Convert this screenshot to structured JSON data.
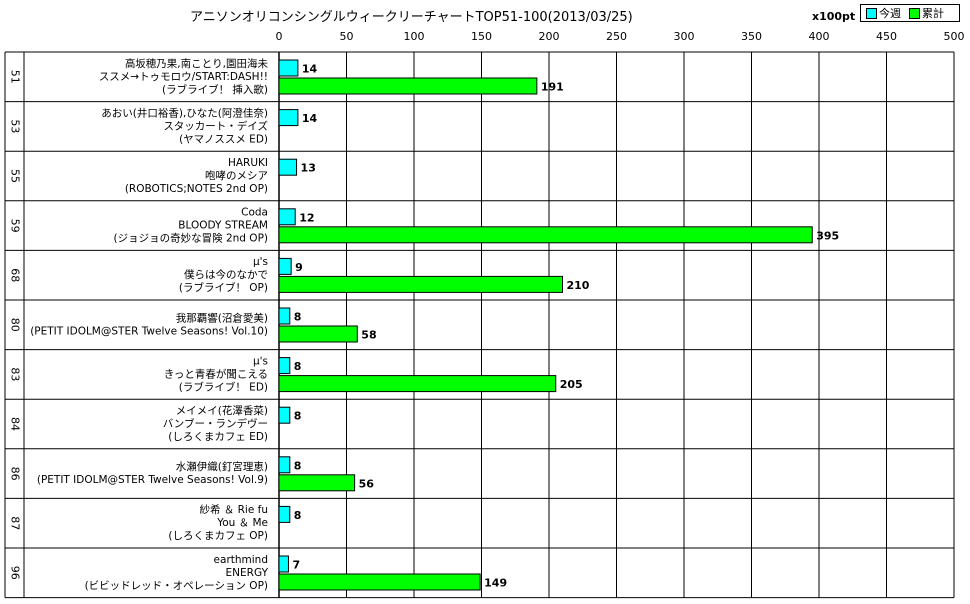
{
  "chart_data": {
    "type": "bar",
    "orientation": "horizontal",
    "title": "アニソンオリコンシングルウィークリーチャートTOP51-100(2013/03/25)",
    "unit_label": "x100pt",
    "xlim": [
      0,
      500
    ],
    "x_ticks": [
      0,
      50,
      100,
      150,
      200,
      250,
      300,
      350,
      400,
      450,
      500
    ],
    "grid": true,
    "legend_position": "top-right",
    "series": [
      {
        "name": "今週",
        "color": "#00ffff"
      },
      {
        "name": "累計",
        "color": "#00ff00"
      }
    ],
    "rows": [
      {
        "rank": "51",
        "lines": [
          "高坂穂乃果,南ことり,園田海未",
          "ススメ→トゥモロウ/START:DASH!!",
          "(ラブライブ！ 挿入歌)"
        ],
        "week": 14,
        "total": 191
      },
      {
        "rank": "53",
        "lines": [
          "あおい(井口裕香),ひなた(阿澄佳奈)",
          "スタッカート・デイズ",
          "(ヤマノススメ ED)"
        ],
        "week": 14,
        "total": null
      },
      {
        "rank": "55",
        "lines": [
          "HARUKI",
          "咆哮のメシア",
          "(ROBOTICS;NOTES 2nd OP)"
        ],
        "week": 13,
        "total": null
      },
      {
        "rank": "59",
        "lines": [
          "Coda",
          "BLOODY STREAM",
          "(ジョジョの奇妙な冒険 2nd OP)"
        ],
        "week": 12,
        "total": 395
      },
      {
        "rank": "68",
        "lines": [
          "μ's",
          "僕らは今のなかで",
          "(ラブライブ！ OP)"
        ],
        "week": 9,
        "total": 210
      },
      {
        "rank": "80",
        "lines": [
          "我那覇響(沼倉愛美)",
          "(PETIT IDOLM@STER Twelve Seasons! Vol.10)"
        ],
        "week": 8,
        "total": 58
      },
      {
        "rank": "83",
        "lines": [
          "μ's",
          "きっと青春が聞こえる",
          "(ラブライブ！ ED)"
        ],
        "week": 8,
        "total": 205
      },
      {
        "rank": "84",
        "lines": [
          "メイメイ(花澤香菜)",
          "バンブー・ランデヴー",
          "(しろくまカフェ ED)"
        ],
        "week": 8,
        "total": null
      },
      {
        "rank": "86",
        "lines": [
          "水瀬伊織(釘宮理恵)",
          "(PETIT IDOLM@STER Twelve Seasons! Vol.9)"
        ],
        "week": 8,
        "total": 56
      },
      {
        "rank": "87",
        "lines": [
          "紗希 ＆ Rie fu",
          "You ＆ Me",
          "(しろくまカフェ OP)"
        ],
        "week": 8,
        "total": null
      },
      {
        "rank": "96",
        "lines": [
          "earthmind",
          "ENERGY",
          "(ビビッドレッド・オペレーション OP)"
        ],
        "week": 7,
        "total": 149
      }
    ]
  }
}
